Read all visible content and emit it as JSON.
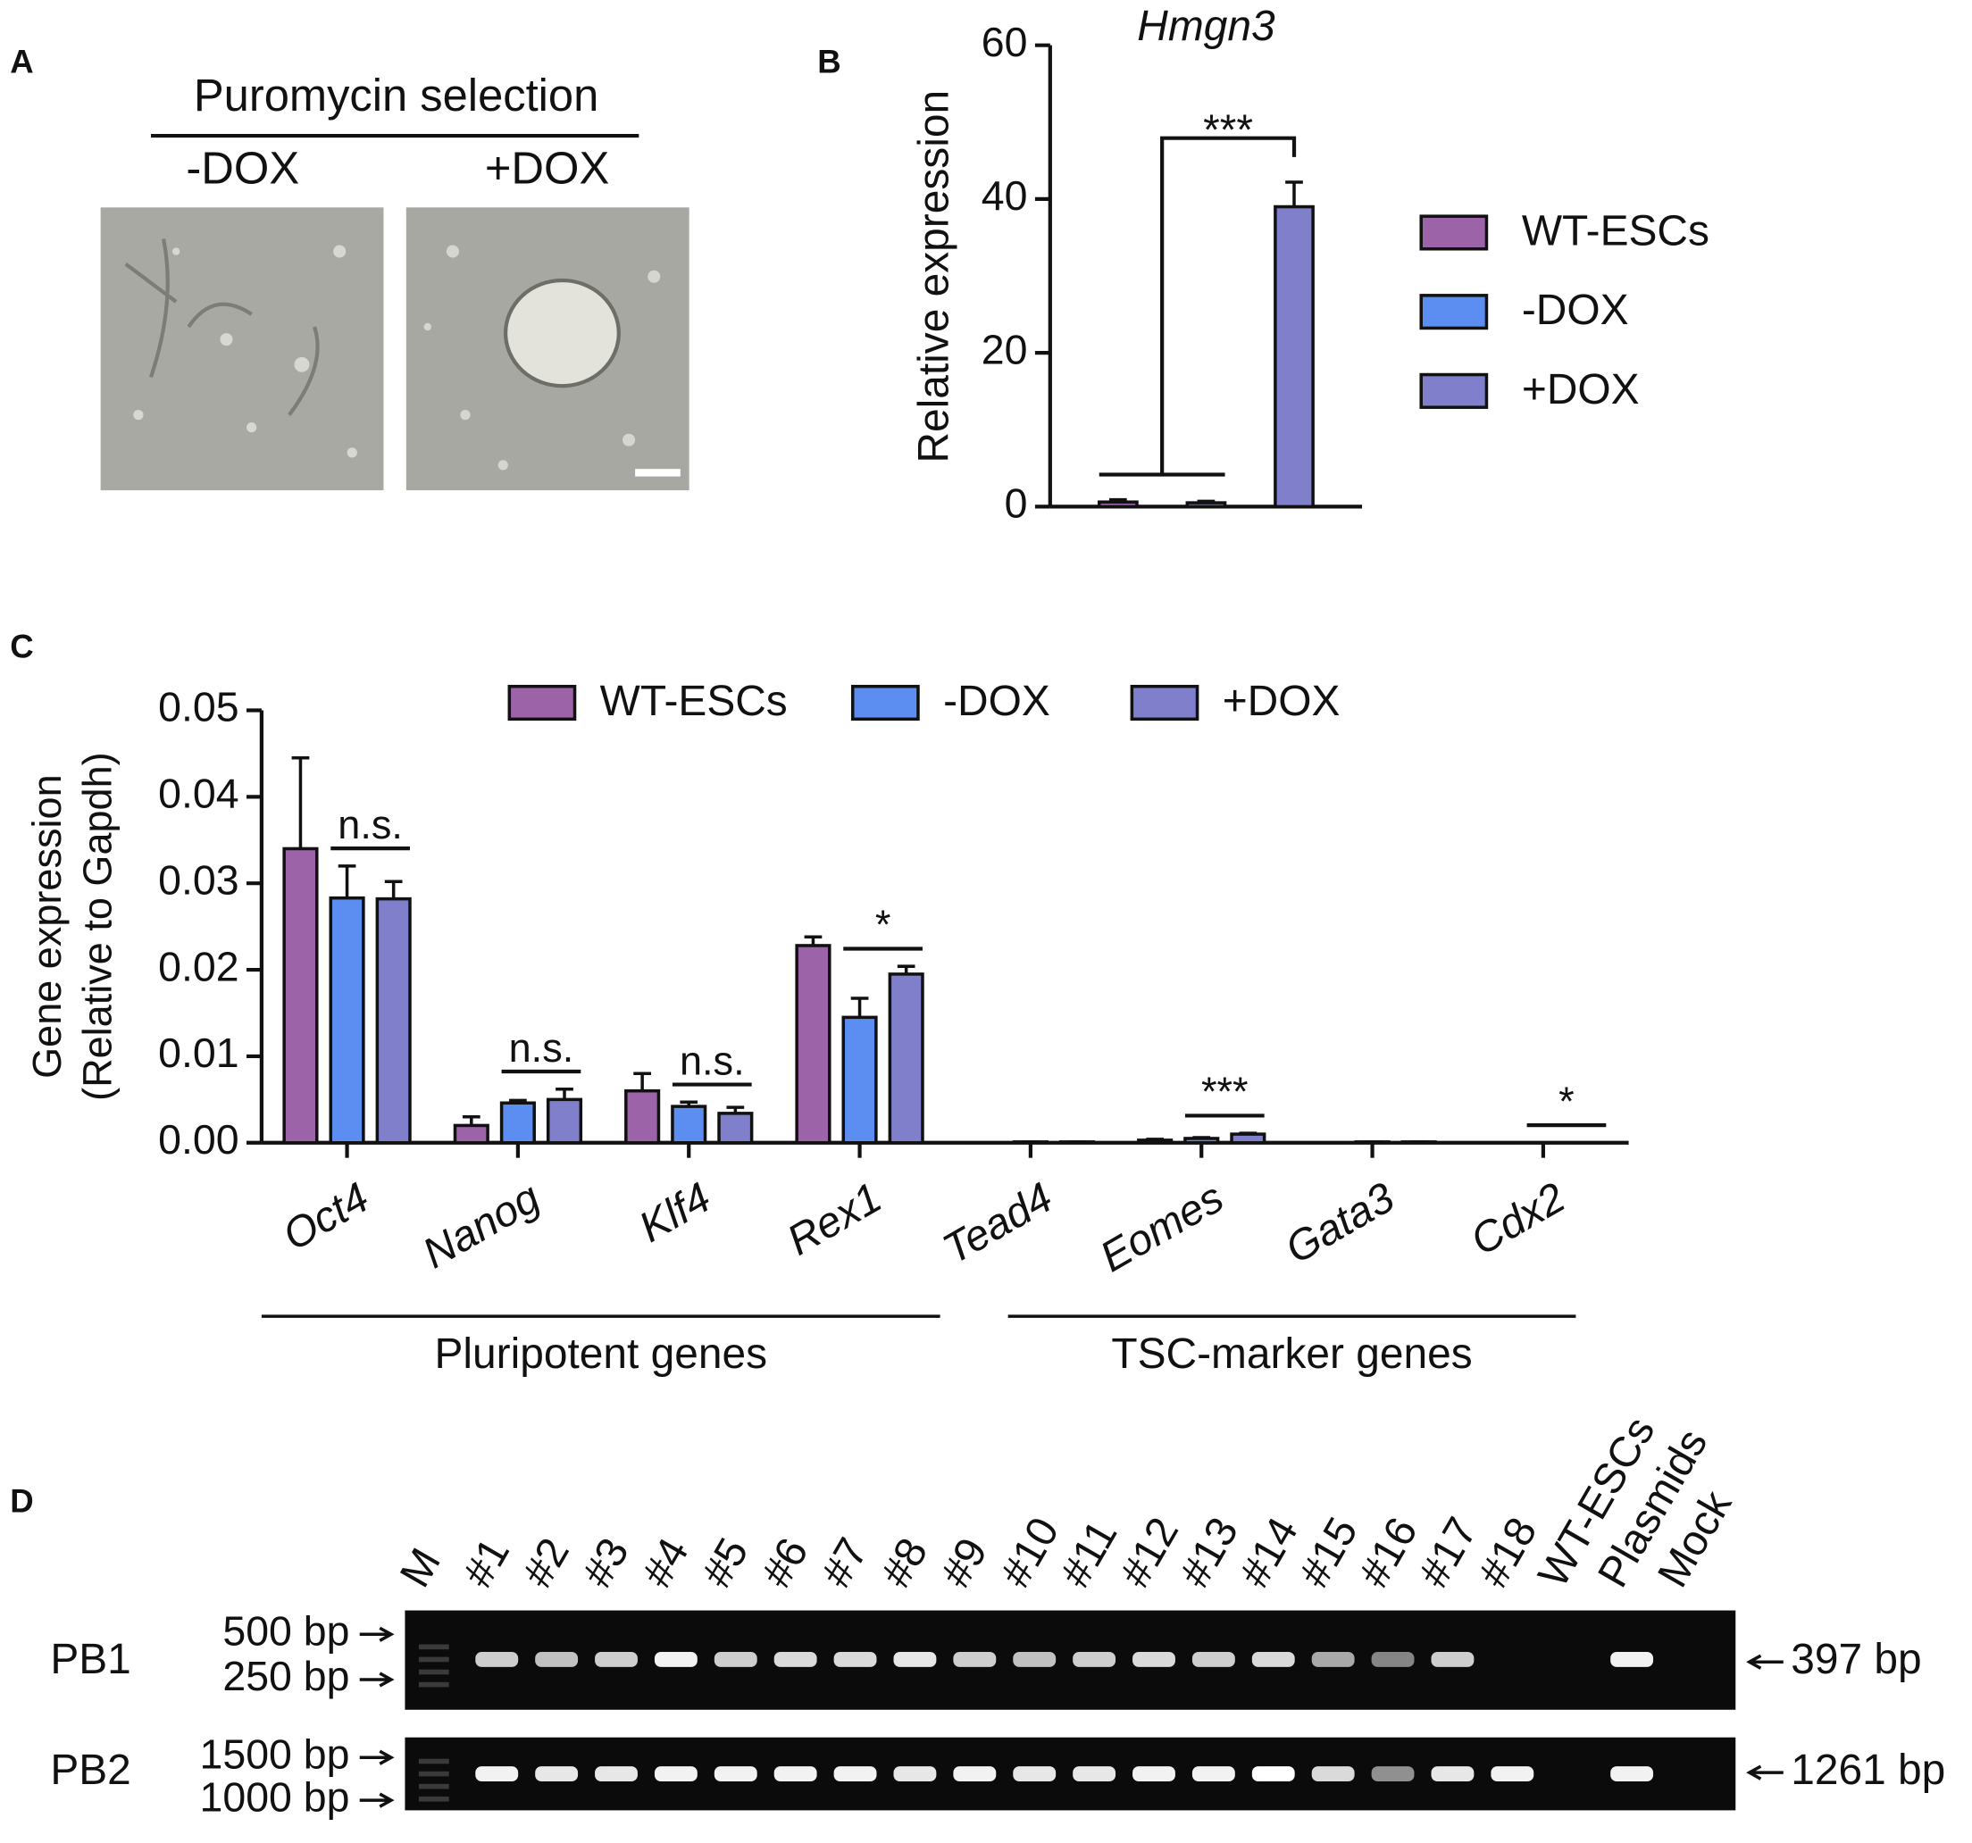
{
  "panel_a": {
    "label": "A",
    "title": "Puromycin selection",
    "conditions": [
      "-DOX",
      "+DOX"
    ]
  },
  "chart_data": [
    {
      "type": "bar",
      "label": "B",
      "title": "Hmgn3",
      "ylabel": "Relative expression",
      "categories": [
        null
      ],
      "ylim": [
        0,
        60
      ],
      "yticks": [
        0,
        20,
        40,
        60
      ],
      "series": [
        {
          "name": "WT-ESCs",
          "color": "#9c63a8",
          "values": [
            0.6
          ],
          "errors": [
            0.3
          ]
        },
        {
          "name": "-DOX",
          "color": "#5b8ef0",
          "values": [
            0.5
          ],
          "errors": [
            0.2
          ]
        },
        {
          "name": "+DOX",
          "color": "#7f7fcc",
          "values": [
            39
          ],
          "errors": [
            3.2
          ]
        }
      ],
      "significance": "***"
    },
    {
      "type": "bar",
      "label": "C",
      "ylabel": [
        "Gene expression",
        "(Relative to Gapdh)"
      ],
      "categories": [
        "Oct4",
        "Nanog",
        "Klf4",
        "Rex1",
        "Tead4",
        "Eomes",
        "Gata3",
        "Cdx2"
      ],
      "groups": [
        "Pluripotent genes",
        "TSC-marker genes"
      ],
      "ylim": [
        0,
        0.05
      ],
      "yticks": [
        {
          "value": 0,
          "label": "0.00"
        },
        0.01,
        0.02,
        0.03,
        0.04,
        0.05
      ],
      "series": [
        {
          "name": "WT-ESCs",
          "color": "#9c63a8",
          "values": [
            0.034,
            0.002,
            0.006,
            0.0228,
            0,
            0.0003,
            0,
            0
          ],
          "errors": [
            0.0105,
            0.001,
            0.002,
            0.001,
            0,
            0.0001,
            0,
            0
          ]
        },
        {
          "name": "-DOX",
          "color": "#5b8ef0",
          "values": [
            0.0283,
            0.0046,
            0.0042,
            0.0145,
            0.0001,
            0.0005,
            0.0001,
            0
          ],
          "errors": [
            0.0037,
            0.0003,
            0.0005,
            0.0022,
            0,
            0.0001,
            0,
            0
          ]
        },
        {
          "name": "+DOX",
          "color": "#7f7fcc",
          "values": [
            0.0282,
            0.005,
            0.0034,
            0.0195,
            0.0001,
            0.001,
            0.0001,
            0
          ],
          "errors": [
            0.002,
            0.0012,
            0.0007,
            0.0009,
            0,
            0.0001,
            0,
            0
          ]
        }
      ],
      "significance": [
        "n.s.",
        "n.s.",
        "n.s.",
        "*",
        null,
        "***",
        null,
        "*"
      ]
    }
  ],
  "panel_d": {
    "label": "D",
    "lanes": [
      "M",
      "#1",
      "#2",
      "#3",
      "#4",
      "#5",
      "#6",
      "#7",
      "#8",
      "#9",
      "#10",
      "#11",
      "#12",
      "#13",
      "#14",
      "#15",
      "#16",
      "#17",
      "#18",
      "WT-ESCs",
      "Plasmids",
      "Mock"
    ],
    "rows": [
      {
        "name": "PB1",
        "markers": [
          "500 bp",
          "250 bp"
        ],
        "product": "397 bp"
      },
      {
        "name": "PB2",
        "markers": [
          "1500 bp",
          "1000 bp"
        ],
        "product": "1261 bp"
      }
    ]
  }
}
